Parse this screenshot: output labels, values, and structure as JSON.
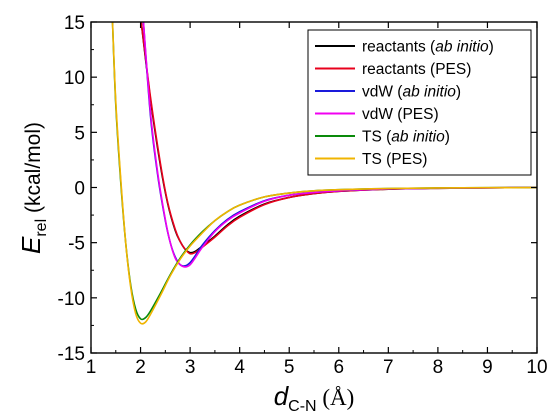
{
  "chart_data": {
    "type": "line",
    "xlabel": {
      "main": "d",
      "sub": "C-N",
      "unit": " (Å)"
    },
    "ylabel": {
      "main": "E",
      "sub": "rel",
      "unit": " (kcal/mol)"
    },
    "xlim": [
      1,
      10
    ],
    "ylim": [
      -15,
      15
    ],
    "xticks": [
      "1",
      "2",
      "3",
      "4",
      "5",
      "6",
      "7",
      "8",
      "9",
      "10"
    ],
    "yticks": [
      "-15",
      "-10",
      "-5",
      "0",
      "5",
      "10",
      "15"
    ],
    "grid": false,
    "legend_position": "top-right",
    "series": [
      {
        "name": "reactants (ab initio)",
        "label_plain": "reactants (",
        "label_italic": "ab initio",
        "label_end": ")",
        "color": "#000000",
        "x": [
          2.0,
          2.2,
          2.4,
          2.55,
          2.7,
          2.8,
          2.9,
          3.0,
          3.1,
          3.25,
          3.5,
          3.75,
          4.0,
          4.5,
          5.0,
          5.5,
          6.0,
          7.0,
          8.0,
          9.0,
          10.0
        ],
        "y": [
          15.5,
          8.0,
          2.0,
          -1.5,
          -3.9,
          -4.9,
          -5.6,
          -5.9,
          -5.8,
          -5.3,
          -4.4,
          -3.4,
          -2.6,
          -1.5,
          -0.9,
          -0.55,
          -0.35,
          -0.15,
          -0.07,
          -0.03,
          -0.01
        ]
      },
      {
        "name": "reactants (PES)",
        "label_plain": "reactants (PES)",
        "label_italic": "",
        "label_end": "",
        "color": "#e8001c",
        "x": [
          2.0,
          2.2,
          2.4,
          2.55,
          2.7,
          2.8,
          2.9,
          3.0,
          3.1,
          3.25,
          3.5,
          3.75,
          4.0,
          4.5,
          5.0,
          5.5,
          6.0,
          7.0,
          8.0,
          9.0,
          10.0
        ],
        "y": [
          15.5,
          8.2,
          2.2,
          -1.4,
          -3.8,
          -4.9,
          -5.6,
          -6.0,
          -5.9,
          -5.4,
          -4.5,
          -3.5,
          -2.7,
          -1.55,
          -0.9,
          -0.55,
          -0.35,
          -0.15,
          -0.07,
          -0.03,
          -0.01
        ]
      },
      {
        "name": "vdW (ab initio)",
        "label_plain": "vdW (",
        "label_italic": "ab initio",
        "label_end": ")",
        "color": "#1a1adb",
        "x": [
          2.05,
          2.2,
          2.35,
          2.5,
          2.6,
          2.7,
          2.8,
          2.9,
          3.0,
          3.1,
          3.25,
          3.5,
          3.75,
          4.0,
          4.5,
          5.0,
          5.5,
          6.0,
          7.0,
          8.0,
          9.0,
          10.0
        ],
        "y": [
          15.5,
          6.5,
          1.0,
          -3.0,
          -5.0,
          -6.3,
          -7.0,
          -7.1,
          -6.8,
          -6.2,
          -5.2,
          -3.9,
          -2.9,
          -2.2,
          -1.2,
          -0.7,
          -0.45,
          -0.3,
          -0.13,
          -0.06,
          -0.03,
          -0.01
        ]
      },
      {
        "name": "vdW (PES)",
        "label_plain": "vdW (PES)",
        "label_italic": "",
        "label_end": "",
        "color": "#f000f0",
        "x": [
          2.05,
          2.2,
          2.35,
          2.5,
          2.6,
          2.7,
          2.8,
          2.9,
          3.0,
          3.1,
          3.25,
          3.5,
          3.75,
          4.0,
          4.5,
          5.0,
          5.5,
          6.0,
          7.0,
          8.0,
          9.0,
          10.0
        ],
        "y": [
          15.5,
          6.8,
          1.2,
          -2.9,
          -5.0,
          -6.4,
          -7.0,
          -7.2,
          -7.0,
          -6.4,
          -5.4,
          -4.0,
          -3.0,
          -2.3,
          -1.25,
          -0.7,
          -0.45,
          -0.3,
          -0.13,
          -0.06,
          -0.03,
          -0.01
        ]
      },
      {
        "name": "TS (ab initio)",
        "label_plain": "TS (",
        "label_italic": "ab initio",
        "label_end": ")",
        "color": "#0a8a0a",
        "x": [
          1.43,
          1.5,
          1.6,
          1.7,
          1.8,
          1.9,
          2.0,
          2.1,
          2.2,
          2.4,
          2.6,
          2.8,
          3.0,
          3.25,
          3.5,
          3.75,
          4.0,
          4.5,
          5.0,
          5.5,
          6.0,
          7.0,
          8.0,
          9.0,
          10.0
        ],
        "y": [
          15.5,
          7.5,
          0.5,
          -5.0,
          -8.8,
          -11.0,
          -11.9,
          -11.8,
          -11.2,
          -9.6,
          -7.9,
          -6.4,
          -5.2,
          -4.0,
          -3.0,
          -2.2,
          -1.6,
          -0.85,
          -0.5,
          -0.3,
          -0.2,
          -0.09,
          -0.04,
          -0.02,
          -0.01
        ]
      },
      {
        "name": "TS (PES)",
        "label_plain": "TS (PES)",
        "label_italic": "",
        "label_end": "",
        "color": "#f0b400",
        "x": [
          1.43,
          1.5,
          1.6,
          1.7,
          1.8,
          1.9,
          2.0,
          2.1,
          2.2,
          2.4,
          2.6,
          2.8,
          3.0,
          3.25,
          3.5,
          3.75,
          4.0,
          4.5,
          5.0,
          5.5,
          6.0,
          7.0,
          8.0,
          9.0,
          10.0
        ],
        "y": [
          15.5,
          7.8,
          0.8,
          -5.0,
          -9.0,
          -11.4,
          -12.3,
          -12.2,
          -11.5,
          -9.8,
          -8.0,
          -6.5,
          -5.3,
          -4.1,
          -3.0,
          -2.2,
          -1.6,
          -0.85,
          -0.5,
          -0.3,
          -0.2,
          -0.09,
          -0.04,
          -0.02,
          -0.01
        ]
      }
    ]
  }
}
